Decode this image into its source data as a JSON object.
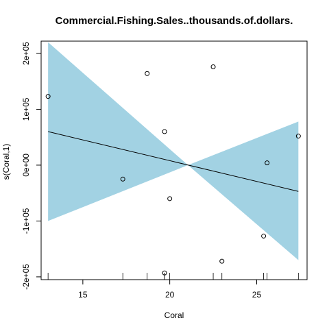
{
  "chart_data": {
    "type": "scatter",
    "title": "Commercial.Fishing.Sales..thousands.of.dollars.",
    "xlabel": "Coral",
    "ylabel": "s(Coral,1)",
    "xlim": [
      12.6,
      27.9
    ],
    "ylim": [
      -205000,
      222000
    ],
    "x_ticks": [
      {
        "value": 15,
        "label": "15"
      },
      {
        "value": 20,
        "label": "20"
      },
      {
        "value": 25,
        "label": "25"
      }
    ],
    "y_ticks": [
      {
        "value": -200000,
        "label": "-2e+05"
      },
      {
        "value": -100000,
        "label": "-1e+05"
      },
      {
        "value": 0,
        "label": "0e+00"
      },
      {
        "value": 100000,
        "label": "1e+05"
      },
      {
        "value": 200000,
        "label": "2e+05"
      }
    ],
    "fit_line": {
      "x": [
        13.0,
        27.4
      ],
      "y": [
        60000,
        -47000
      ]
    },
    "confidence_band": {
      "x": [
        13.0,
        21.05,
        27.4
      ],
      "upper": [
        220000,
        0,
        78000
      ],
      "lower": [
        -100000,
        0,
        -170000
      ],
      "color": "#a2d2e3"
    },
    "points": [
      {
        "x": 13.0,
        "y": 123000
      },
      {
        "x": 17.3,
        "y": -25000
      },
      {
        "x": 18.7,
        "y": 164000
      },
      {
        "x": 19.7,
        "y": 60000
      },
      {
        "x": 20.0,
        "y": -60000
      },
      {
        "x": 19.7,
        "y": -193000
      },
      {
        "x": 22.5,
        "y": 176000
      },
      {
        "x": 23.0,
        "y": -172000
      },
      {
        "x": 25.4,
        "y": -127000
      },
      {
        "x": 25.6,
        "y": 4000
      },
      {
        "x": 27.4,
        "y": 52000
      }
    ],
    "rug": [
      13.0,
      17.3,
      18.7,
      19.7,
      19.7,
      20.0,
      22.5,
      23.0,
      25.4,
      25.6,
      27.4
    ],
    "grid": false,
    "legend": "none"
  }
}
